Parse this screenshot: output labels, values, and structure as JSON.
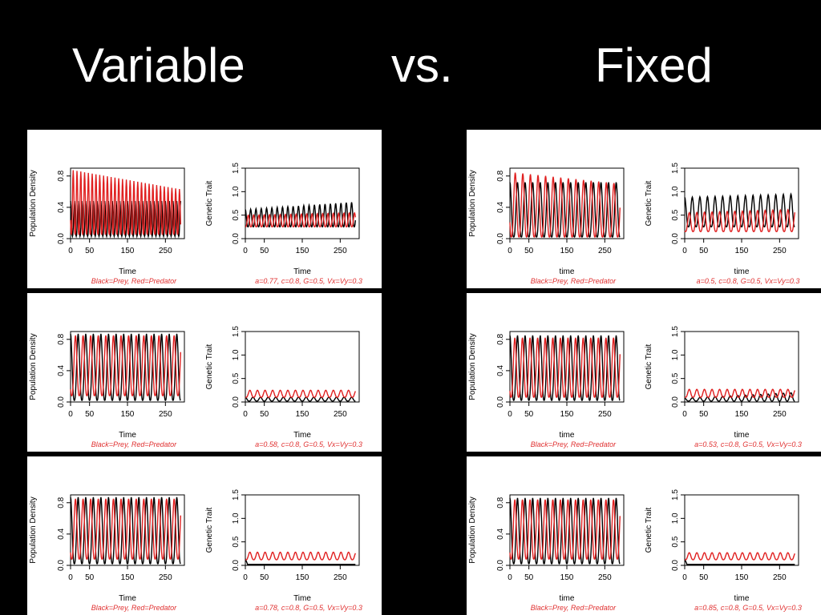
{
  "header": {
    "left": "Variable",
    "middle": "vs.",
    "right": "Fixed"
  },
  "panels": [
    {
      "left": {
        "ylabel": "Population Density",
        "xlabel": "Time",
        "caption": "Black=Prey, Red=Predator"
      },
      "right": {
        "ylabel": "Genetic Trait",
        "xlabel": "Time",
        "caption": "a=0.77, c=0.8, G=0.5, Vx=Vy=0.3"
      }
    },
    {
      "left": {
        "ylabel": "Population Density",
        "xlabel": "time",
        "caption": "Black=Prey, Red=Predator"
      },
      "right": {
        "ylabel": "Genetic Trait",
        "xlabel": "time",
        "caption": "a=0.5, c=0.8, G=0.5, Vx=Vy=0.3"
      }
    },
    {
      "left": {
        "ylabel": "Population Density",
        "xlabel": "Time",
        "caption": "Black=Prey, Red=Predator"
      },
      "right": {
        "ylabel": "Genetic Trait",
        "xlabel": "Time",
        "caption": "a=0.58, c=0.8, G=0.5, Vx=Vy=0.3"
      }
    },
    {
      "left": {
        "ylabel": "Population Density",
        "xlabel": "time",
        "caption": "Black=Prey, Red=Predator"
      },
      "right": {
        "ylabel": "Genetic Trait",
        "xlabel": "time",
        "caption": "a=0.53, c=0.8, G=0.5, Vx=Vy=0.3"
      }
    },
    {
      "left": {
        "ylabel": "Population Density",
        "xlabel": "Time",
        "caption": "Black=Prey, Red=Predator"
      },
      "right": {
        "ylabel": "Genetic Trait",
        "xlabel": "Time",
        "caption": "a=0.78, c=0.8, G=0.5, Vx=Vy=0.3"
      }
    },
    {
      "left": {
        "ylabel": "Population Density",
        "xlabel": "time",
        "caption": "Black=Prey, Red=Predator"
      },
      "right": {
        "ylabel": "Genetic Trait",
        "xlabel": "time",
        "caption": "a=0.85, c=0.8, G=0.5, Vx=Vy=0.3"
      }
    }
  ],
  "colors": {
    "prey": "#000000",
    "predator": "#e02020",
    "caption": "#e03030"
  },
  "chart_data": [
    {
      "type": "line",
      "panel": 0,
      "plot": "population",
      "xlim": [
        0,
        300
      ],
      "ylim": [
        0,
        0.9
      ],
      "xticks": [
        "0",
        "50",
        "150",
        "250"
      ],
      "yticks": [
        "0.0",
        "0.4",
        "0.8"
      ],
      "period": 10,
      "series": [
        {
          "name": "Prey",
          "color": "#000000",
          "peak": 0.48,
          "trough": 0.03,
          "phase": 0.0
        },
        {
          "name": "Predator",
          "color": "#e02020",
          "peak_start": 0.88,
          "peak_end": 0.63,
          "trough": 0.05,
          "phase": 0.3
        }
      ]
    },
    {
      "type": "line",
      "panel": 0,
      "plot": "trait",
      "xlim": [
        0,
        300
      ],
      "ylim": [
        0,
        1.5
      ],
      "xticks": [
        "0",
        "50",
        "150",
        "250"
      ],
      "yticks": [
        "0.0",
        "0.5",
        "1.0",
        "1.5"
      ],
      "period": 14,
      "series": [
        {
          "name": "Prey",
          "color": "#000000",
          "peak_start": 0.62,
          "peak_end": 0.78,
          "trough": 0.25,
          "phase": 0.0
        },
        {
          "name": "Predator",
          "color": "#e02020",
          "peak_start": 0.5,
          "peak_end": 0.55,
          "trough": 0.25,
          "phase": 0.45
        }
      ]
    },
    {
      "type": "line",
      "panel": 1,
      "plot": "population",
      "xlim": [
        0,
        300
      ],
      "ylim": [
        0,
        0.9
      ],
      "xticks": [
        "0",
        "50",
        "150",
        "250"
      ],
      "yticks": [
        "0.0",
        "0.4",
        "0.8"
      ],
      "period": 20,
      "series": [
        {
          "name": "Prey",
          "color": "#000000",
          "peak": 0.72,
          "trough": 0.02,
          "phase": 0.0
        },
        {
          "name": "Predator",
          "color": "#e02020",
          "peak_start": 0.85,
          "peak_end": 0.7,
          "trough": 0.02,
          "phase": 0.3
        }
      ]
    },
    {
      "type": "line",
      "panel": 1,
      "plot": "trait",
      "xlim": [
        0,
        300
      ],
      "ylim": [
        0,
        1.5
      ],
      "xticks": [
        "0",
        "50",
        "150",
        "250"
      ],
      "yticks": [
        "0.0",
        "0.5",
        "1.0",
        "1.5"
      ],
      "period": 20,
      "series": [
        {
          "name": "Prey",
          "color": "#000000",
          "peak_start": 0.88,
          "peak_end": 0.95,
          "trough": 0.25,
          "phase": 0.0
        },
        {
          "name": "Predator",
          "color": "#e02020",
          "peak_start": 0.55,
          "peak_end": 0.62,
          "trough": 0.15,
          "phase": 0.4
        }
      ]
    },
    {
      "type": "line",
      "panel": 2,
      "plot": "population",
      "xlim": [
        0,
        300
      ],
      "ylim": [
        0,
        0.9
      ],
      "xticks": [
        "0",
        "50",
        "150",
        "250"
      ],
      "yticks": [
        "0.0",
        "0.4",
        "0.8"
      ],
      "period": 20,
      "series": [
        {
          "name": "Prey",
          "color": "#000000",
          "peak": 0.87,
          "trough": 0.02,
          "phase": 0.0
        },
        {
          "name": "Predator",
          "color": "#e02020",
          "peak": 0.85,
          "trough": 0.08,
          "phase": 0.35
        }
      ]
    },
    {
      "type": "line",
      "panel": 2,
      "plot": "trait",
      "xlim": [
        0,
        300
      ],
      "ylim": [
        0,
        1.5
      ],
      "xticks": [
        "0",
        "50",
        "150",
        "250"
      ],
      "yticks": [
        "0.0",
        "0.5",
        "1.0",
        "1.5"
      ],
      "period": 20,
      "series": [
        {
          "name": "Prey",
          "color": "#000000",
          "peak": 0.1,
          "trough": 0.02,
          "phase": 0.0
        },
        {
          "name": "Predator",
          "color": "#e02020",
          "peak": 0.25,
          "trough": 0.1,
          "phase": 0.4
        }
      ]
    },
    {
      "type": "line",
      "panel": 3,
      "plot": "population",
      "xlim": [
        0,
        300
      ],
      "ylim": [
        0,
        0.9
      ],
      "xticks": [
        "0",
        "50",
        "150",
        "250"
      ],
      "yticks": [
        "0.0",
        "0.4",
        "0.8"
      ],
      "period": 20,
      "series": [
        {
          "name": "Prey",
          "color": "#000000",
          "peak": 0.85,
          "trough": 0.02,
          "phase": 0.0
        },
        {
          "name": "Predator",
          "color": "#e02020",
          "peak": 0.82,
          "trough": 0.06,
          "phase": 0.35
        }
      ]
    },
    {
      "type": "line",
      "panel": 3,
      "plot": "trait",
      "xlim": [
        0,
        300
      ],
      "ylim": [
        0,
        1.5
      ],
      "xticks": [
        "0",
        "50",
        "150",
        "250"
      ],
      "yticks": [
        "0.0",
        "0.5",
        "1.0",
        "1.5"
      ],
      "period": 20,
      "series": [
        {
          "name": "Prey",
          "color": "#000000",
          "peak_start": 0.08,
          "peak_end": 0.2,
          "trough": 0.02,
          "phase": 0.0
        },
        {
          "name": "Predator",
          "color": "#e02020",
          "peak": 0.27,
          "trough": 0.1,
          "phase": 0.4
        }
      ]
    },
    {
      "type": "line",
      "panel": 4,
      "plot": "population",
      "xlim": [
        0,
        300
      ],
      "ylim": [
        0,
        0.9
      ],
      "xticks": [
        "0",
        "50",
        "150",
        "250"
      ],
      "yticks": [
        "0.0",
        "0.4",
        "0.8"
      ],
      "period": 20,
      "series": [
        {
          "name": "Prey",
          "color": "#000000",
          "peak": 0.87,
          "trough": 0.02,
          "phase": 0.0
        },
        {
          "name": "Predator",
          "color": "#e02020",
          "peak": 0.85,
          "trough": 0.08,
          "phase": 0.35
        }
      ]
    },
    {
      "type": "line",
      "panel": 4,
      "plot": "trait",
      "xlim": [
        0,
        300
      ],
      "ylim": [
        0,
        1.5
      ],
      "xticks": [
        "0",
        "50",
        "150",
        "250"
      ],
      "yticks": [
        "0.0",
        "0.5",
        "1.0",
        "1.5"
      ],
      "period": 20,
      "series": [
        {
          "name": "Prey",
          "color": "#000000",
          "flat": 0.02
        },
        {
          "name": "Predator",
          "color": "#e02020",
          "peak": 0.28,
          "trough": 0.12,
          "phase": 0.4
        }
      ]
    },
    {
      "type": "line",
      "panel": 5,
      "plot": "population",
      "xlim": [
        0,
        300
      ],
      "ylim": [
        0,
        0.9
      ],
      "xticks": [
        "0",
        "50",
        "150",
        "250"
      ],
      "yticks": [
        "0.0",
        "0.4",
        "0.8"
      ],
      "period": 20,
      "series": [
        {
          "name": "Prey",
          "color": "#000000",
          "peak": 0.86,
          "trough": 0.02,
          "phase": 0.0
        },
        {
          "name": "Predator",
          "color": "#e02020",
          "peak": 0.84,
          "trough": 0.08,
          "phase": 0.35
        }
      ]
    },
    {
      "type": "line",
      "panel": 5,
      "plot": "trait",
      "xlim": [
        0,
        300
      ],
      "ylim": [
        0,
        1.5
      ],
      "xticks": [
        "0",
        "50",
        "150",
        "250"
      ],
      "yticks": [
        "0.0",
        "0.5",
        "1.0",
        "1.5"
      ],
      "period": 20,
      "series": [
        {
          "name": "Prey",
          "color": "#000000",
          "flat": 0.02
        },
        {
          "name": "Predator",
          "color": "#e02020",
          "peak": 0.27,
          "trough": 0.12,
          "phase": 0.4
        }
      ]
    }
  ]
}
